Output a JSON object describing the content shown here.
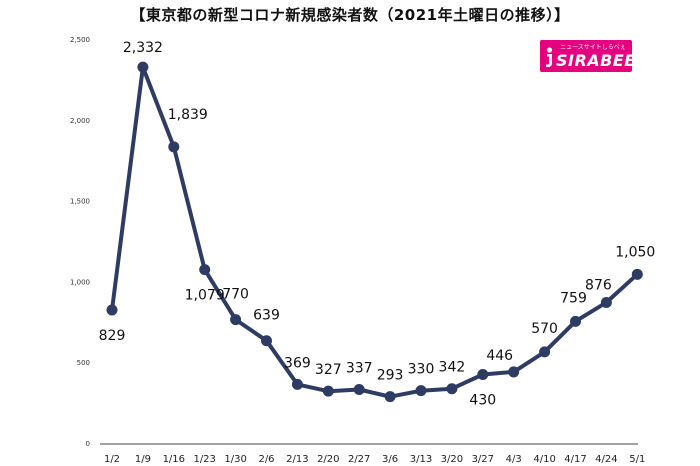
{
  "title": "【東京都の新型コロナ新規感染者数（2021年土曜日の推移）】",
  "logo": {
    "sub": "ニュースサイトしらべぇ",
    "main": "SIRABEE"
  },
  "colors": {
    "line": "#2e3b63",
    "logo": "#e4007f"
  },
  "chart_data": {
    "type": "line",
    "title": "【東京都の新型コロナ新規感染者数（2021年土曜日の推移）】",
    "xlabel": "",
    "ylabel": "",
    "ylim": [
      0,
      2500
    ],
    "yticks": [
      0,
      500,
      1000,
      1500,
      2000,
      2500
    ],
    "ytick_labels": [
      "0",
      "500",
      "1,000",
      "1,500",
      "2,000",
      "2,500"
    ],
    "grid": false,
    "legend": "none",
    "categories": [
      "1/2",
      "1/9",
      "1/16",
      "1/23",
      "1/30",
      "2/6",
      "2/13",
      "2/20",
      "2/27",
      "3/6",
      "3/13",
      "3/20",
      "3/27",
      "4/3",
      "4/10",
      "4/17",
      "4/24",
      "5/1"
    ],
    "values": [
      829,
      2332,
      1839,
      1079,
      770,
      639,
      369,
      327,
      337,
      293,
      330,
      342,
      430,
      446,
      570,
      759,
      876,
      1050
    ],
    "value_labels": [
      "829",
      "2,332",
      "1,839",
      "1,079",
      "770",
      "639",
      "369",
      "327",
      "337",
      "293",
      "330",
      "342",
      "430",
      "446",
      "570",
      "759",
      "876",
      "1,050"
    ]
  }
}
